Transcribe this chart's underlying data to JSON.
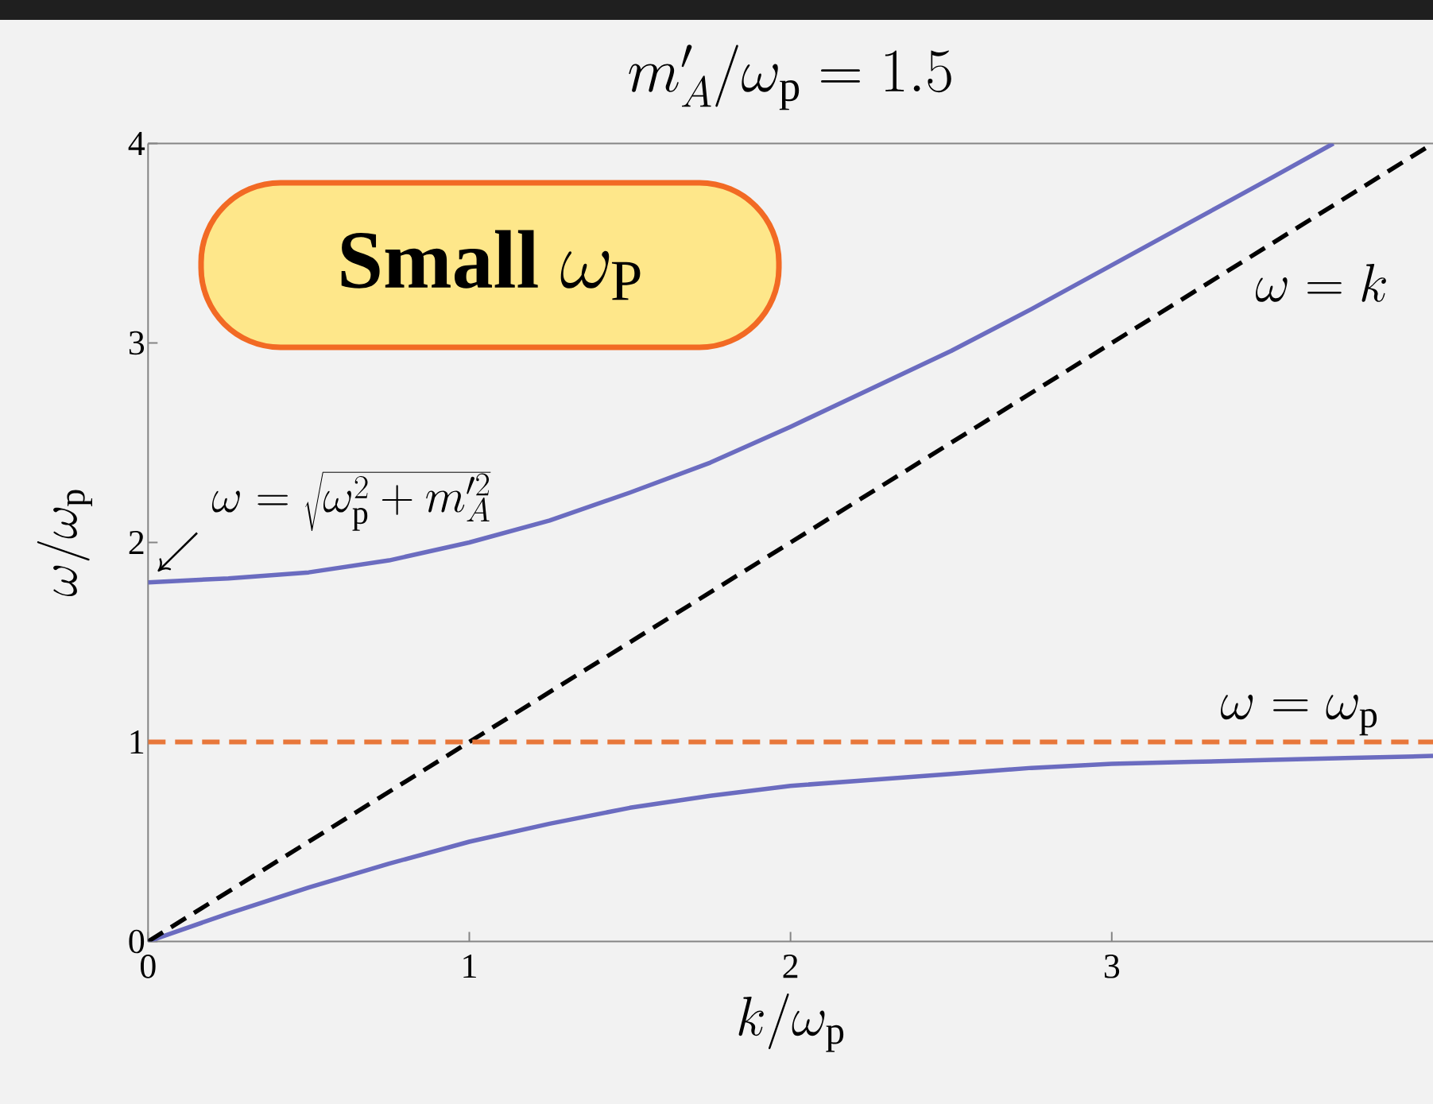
{
  "chart_data": {
    "type": "line",
    "title": "m'_A/\\omega_\\mathrm{p} = 1.5",
    "xlabel": "k/\\omega_\\mathrm{p}",
    "ylabel": "\\omega/\\omega_\\mathrm{p}",
    "xlim": [
      0,
      4
    ],
    "ylim": [
      0,
      4
    ],
    "xticks": [
      0,
      1,
      2,
      3
    ],
    "yticks": [
      0,
      1,
      2,
      3,
      4
    ],
    "line_style": "solid",
    "series": [
      {
        "color": "#6b6cc0",
        "x": [
          0,
          0.25,
          0.5,
          0.75,
          1,
          1.25,
          1.5,
          1.75,
          2,
          2.25,
          2.5,
          2.75,
          3,
          3.25,
          3.5,
          3.69
        ],
        "values": [
          1.8,
          1.82,
          1.85,
          1.91,
          2.0,
          2.11,
          2.25,
          2.4,
          2.58,
          2.77,
          2.96,
          3.17,
          3.39,
          3.61,
          3.83,
          4.0
        ]
      },
      {
        "color": "#6b6cc0",
        "x": [
          0,
          0.25,
          0.5,
          0.75,
          1,
          1.25,
          1.5,
          1.75,
          2,
          2.25,
          2.5,
          2.75,
          3,
          3.25,
          3.5,
          3.75,
          4
        ],
        "values": [
          0,
          0.14,
          0.27,
          0.39,
          0.5,
          0.59,
          0.67,
          0.73,
          0.78,
          0.81,
          0.84,
          0.87,
          0.89,
          0.9,
          0.91,
          0.92,
          0.93
        ]
      },
      {
        "name": "\\omega = k",
        "color": "#000000",
        "line_style": "dashed",
        "x": [
          0,
          4
        ],
        "values": [
          0,
          4
        ]
      }
    ],
    "ref_lines": [
      {
        "axis": "y",
        "value": 1,
        "label": "\\omega = \\omega_\\mathrm{p}",
        "color": "#e8773a",
        "line_style": "dashed"
      }
    ],
    "annotations": [
      "\\omega = \\sqrt{\\omega_\\mathrm{p}^2 + m_A'^2}",
      "\\textbf{Small}\\ \\omega_{\\mathrm{P}}"
    ]
  }
}
